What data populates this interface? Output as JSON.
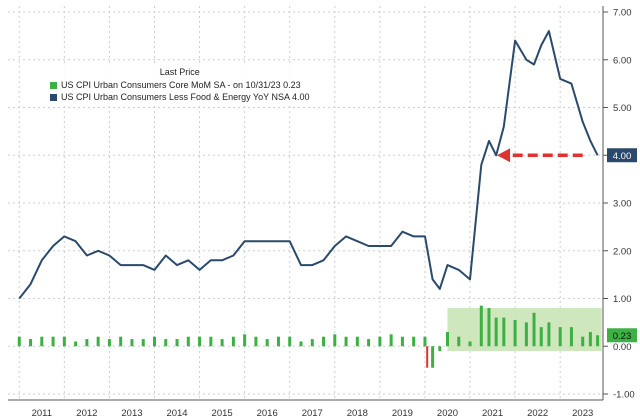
{
  "chart_data": {
    "type": "line",
    "ylim": [
      -1.0,
      7.0
    ],
    "y_ticks": [
      "7.00",
      "6.00",
      "5.00",
      "4.00",
      "3.00",
      "2.00",
      "1.00",
      "0.00",
      "-1.00"
    ],
    "x_ticks": [
      "2011",
      "2012",
      "2013",
      "2014",
      "2015",
      "2016",
      "2017",
      "2018",
      "2019",
      "2020",
      "2021",
      "2022",
      "2023"
    ],
    "grid": true,
    "legend_position": "top-left",
    "legend_title": "Last Price",
    "series": [
      {
        "name": "US CPI Urban Consumers Core MoM SA",
        "legend_text": "US CPI Urban Consumers Core MoM SA  -  on 10/31/23 0.23",
        "type": "bar",
        "color": "#3cb043",
        "last_value_label": "0.23",
        "x": [
          2011.0,
          2011.25,
          2011.5,
          2011.75,
          2012.0,
          2012.25,
          2012.5,
          2012.75,
          2013.0,
          2013.25,
          2013.5,
          2013.75,
          2014.0,
          2014.25,
          2014.5,
          2014.75,
          2015.0,
          2015.25,
          2015.5,
          2015.75,
          2016.0,
          2016.25,
          2016.5,
          2016.75,
          2017.0,
          2017.25,
          2017.5,
          2017.75,
          2018.0,
          2018.25,
          2018.5,
          2018.75,
          2019.0,
          2019.25,
          2019.5,
          2019.75,
          2020.0,
          2020.17,
          2020.33,
          2020.5,
          2020.75,
          2021.0,
          2021.25,
          2021.42,
          2021.58,
          2021.75,
          2022.0,
          2022.25,
          2022.42,
          2022.58,
          2022.75,
          2023.0,
          2023.25,
          2023.5,
          2023.67,
          2023.83
        ],
        "values": [
          0.2,
          0.15,
          0.2,
          0.2,
          0.2,
          0.1,
          0.15,
          0.2,
          0.15,
          0.2,
          0.15,
          0.15,
          0.2,
          0.15,
          0.15,
          0.2,
          0.2,
          0.2,
          0.15,
          0.2,
          0.25,
          0.2,
          0.15,
          0.2,
          0.2,
          0.1,
          0.15,
          0.2,
          0.25,
          0.2,
          0.2,
          0.15,
          0.2,
          0.25,
          0.2,
          0.2,
          0.2,
          -0.45,
          -0.1,
          0.3,
          0.2,
          0.1,
          0.85,
          0.8,
          0.6,
          0.6,
          0.55,
          0.5,
          0.7,
          0.4,
          0.5,
          0.4,
          0.4,
          0.2,
          0.3,
          0.23
        ]
      },
      {
        "name": "US CPI Urban Consumers Less Food & Energy YoY NSA",
        "legend_text": "US CPI Urban Consumers Less Food & Energy YoY NSA 4.00",
        "type": "line",
        "color": "#2b4a6b",
        "last_value_label": "4.00",
        "x": [
          2011.0,
          2011.25,
          2011.5,
          2011.75,
          2012.0,
          2012.25,
          2012.5,
          2012.75,
          2013.0,
          2013.25,
          2013.5,
          2013.75,
          2014.0,
          2014.25,
          2014.5,
          2014.75,
          2015.0,
          2015.25,
          2015.5,
          2015.75,
          2016.0,
          2016.25,
          2016.5,
          2016.75,
          2017.0,
          2017.25,
          2017.5,
          2017.75,
          2018.0,
          2018.25,
          2018.5,
          2018.75,
          2019.0,
          2019.25,
          2019.5,
          2019.75,
          2020.0,
          2020.17,
          2020.33,
          2020.5,
          2020.75,
          2021.0,
          2021.25,
          2021.42,
          2021.58,
          2021.75,
          2022.0,
          2022.25,
          2022.42,
          2022.58,
          2022.75,
          2023.0,
          2023.25,
          2023.5,
          2023.67,
          2023.83
        ],
        "values": [
          1.0,
          1.3,
          1.8,
          2.1,
          2.3,
          2.2,
          1.9,
          2.0,
          1.9,
          1.7,
          1.7,
          1.7,
          1.6,
          1.9,
          1.7,
          1.8,
          1.6,
          1.8,
          1.8,
          1.9,
          2.2,
          2.2,
          2.2,
          2.2,
          2.2,
          1.7,
          1.7,
          1.8,
          2.1,
          2.3,
          2.2,
          2.1,
          2.1,
          2.1,
          2.4,
          2.3,
          2.3,
          1.4,
          1.2,
          1.7,
          1.6,
          1.4,
          3.8,
          4.3,
          4.0,
          4.6,
          6.4,
          6.0,
          5.9,
          6.3,
          6.6,
          5.6,
          5.5,
          4.7,
          4.3,
          4.0
        ]
      }
    ],
    "annotation": {
      "type": "dashed-arrow",
      "color": "#e03030",
      "from": [
        2023.5,
        4.0
      ],
      "to": [
        2021.6,
        4.0
      ]
    },
    "highlight_band": {
      "color": "#c9e4b6",
      "x_range": [
        2020.5,
        2023.92
      ],
      "y_range": [
        -0.1,
        0.8
      ]
    },
    "highlight_marker": {
      "color": "#e03030",
      "x": 2020.05,
      "y_range": [
        -0.45,
        0.0
      ]
    }
  }
}
